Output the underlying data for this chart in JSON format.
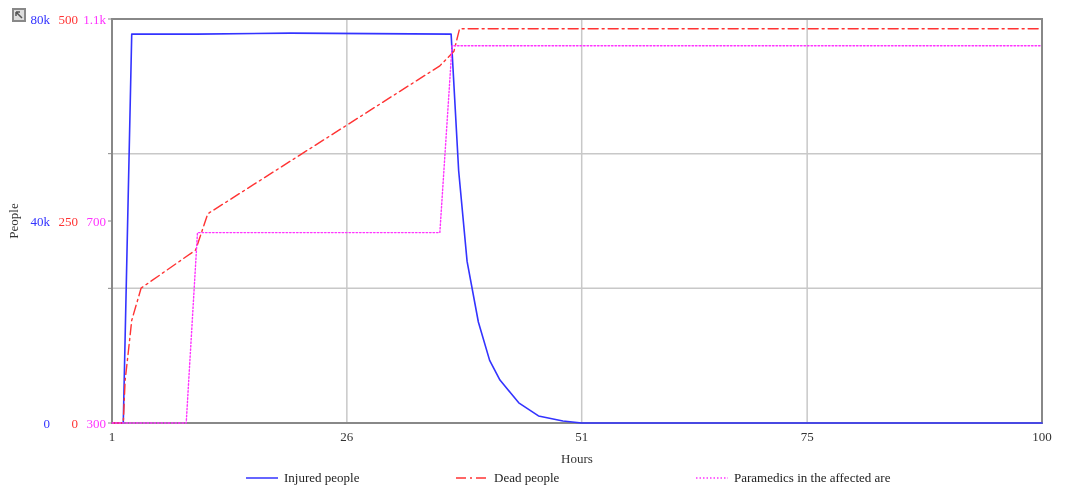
{
  "chart_data": {
    "type": "line",
    "xlabel": "Hours",
    "ylabel": "People",
    "xlim": [
      1,
      100
    ],
    "xticks": [
      1,
      26,
      51,
      75,
      100
    ],
    "ylim": [
      0,
      80000
    ],
    "yticks": [
      0,
      {
        "value": 26667,
        "label": null
      },
      {
        "value": 40000,
        "label": "40k"
      },
      {
        "value": 53333,
        "label": null
      },
      {
        "value": 80000,
        "label": "80k"
      }
    ],
    "y2lim": [
      0,
      500
    ],
    "y2ticks": [
      0,
      250,
      500
    ],
    "y3lim": [
      300,
      1100
    ],
    "y3ticks": [
      300,
      700,
      {
        "value": 1100,
        "label": "1.1k"
      }
    ],
    "grid": true,
    "legend": "bottom",
    "series": [
      {
        "name": "Injured people",
        "color": "#3333ff",
        "line_style": "solid",
        "x": [
          1,
          2.2,
          3.1,
          10,
          20,
          37.1,
          37.9,
          38.8,
          40,
          41.2,
          42.3,
          44.3,
          46.4,
          49,
          51,
          100
        ],
        "values": [
          0,
          0,
          77000,
          77000,
          77200,
          77000,
          50000,
          32000,
          20000,
          12400,
          8500,
          4000,
          1400,
          400,
          0,
          0
        ]
      },
      {
        "name": "Dead people",
        "color": "#ff3333",
        "axis": "y2",
        "line_style": "dashed",
        "x": [
          1,
          2.2,
          2.4,
          2.7,
          3.1,
          4.1,
          9.9,
          11.2,
          35.9,
          37.4,
          38,
          100
        ],
        "values": [
          0,
          0,
          53,
          84,
          127,
          167,
          214,
          259,
          442,
          460,
          488,
          488
        ]
      },
      {
        "name": "Paramedics in the affected are",
        "color": "#ff33ff",
        "axis": "y3",
        "line_style": "dotted",
        "x": [
          1,
          8.9,
          10.1,
          35.9,
          37.2,
          100
        ],
        "values": [
          300,
          300,
          677,
          677,
          1047,
          1047
        ]
      }
    ]
  }
}
